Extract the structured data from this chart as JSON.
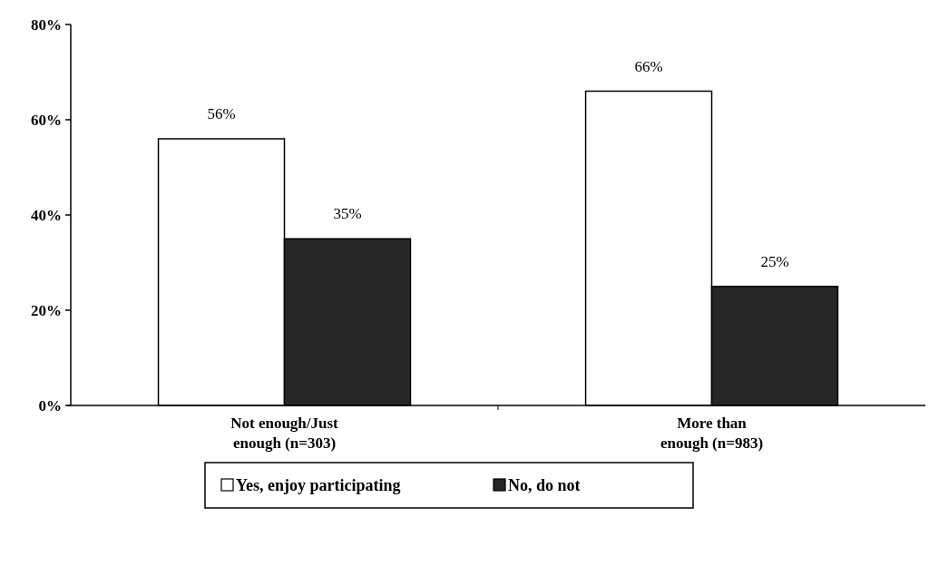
{
  "chart_data": {
    "type": "bar",
    "categories": [
      "Not enough/Just\nenough (n=303)",
      "More than\nenough (n=983)"
    ],
    "series": [
      {
        "name": "Yes, enjoy participating",
        "color": "#ffffff",
        "values": [
          56,
          66
        ],
        "value_labels": [
          "56%",
          "66%"
        ]
      },
      {
        "name": "No, do not",
        "color": "#262626",
        "values": [
          35,
          25
        ],
        "value_labels": [
          "35%",
          "25%"
        ]
      }
    ],
    "ylim": [
      0,
      80
    ],
    "yticks": [
      {
        "value": 0,
        "label": "0%"
      },
      {
        "value": 20,
        "label": "20%"
      },
      {
        "value": 40,
        "label": "40%"
      },
      {
        "value": 60,
        "label": "60%"
      },
      {
        "value": 80,
        "label": "80%"
      }
    ],
    "legend": "bottom"
  }
}
